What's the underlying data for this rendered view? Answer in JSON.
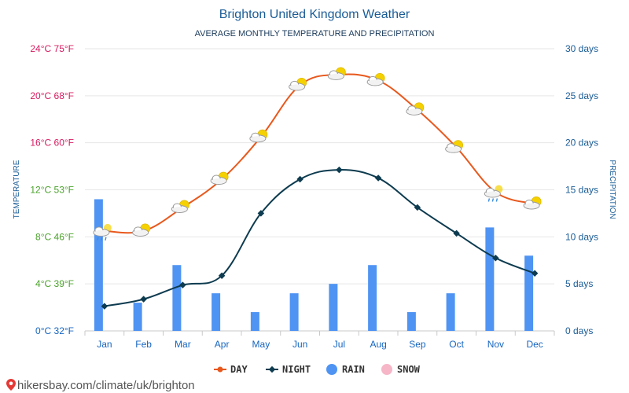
{
  "chart_data": {
    "type": "line",
    "title": "Brighton United Kingdom Weather",
    "subtitle": "AVERAGE MONTHLY TEMPERATURE AND PRECIPITATION",
    "ylabel_left": "TEMPERATURE",
    "ylabel_right": "PRECIPITATION",
    "categories": [
      "Jan",
      "Feb",
      "Mar",
      "Apr",
      "May",
      "Jun",
      "Jul",
      "Aug",
      "Sep",
      "Oct",
      "Nov",
      "Dec"
    ],
    "left_axis": {
      "ylim": [
        0,
        24
      ],
      "ticks": [
        {
          "value": 0,
          "label": "0°C 32°F",
          "color": "#1565c0"
        },
        {
          "value": 4,
          "label": "4°C 39°F",
          "color": "#4aa32a"
        },
        {
          "value": 8,
          "label": "8°C 46°F",
          "color": "#4aa32a"
        },
        {
          "value": 12,
          "label": "12°C 53°F",
          "color": "#4aa32a"
        },
        {
          "value": 16,
          "label": "16°C 60°F",
          "color": "#d81b60"
        },
        {
          "value": 20,
          "label": "20°C 68°F",
          "color": "#d81b60"
        },
        {
          "value": 24,
          "label": "24°C 75°F",
          "color": "#d81b60"
        }
      ]
    },
    "right_axis": {
      "ylim": [
        0,
        30
      ],
      "ticks": [
        {
          "value": 0,
          "label": "0 days"
        },
        {
          "value": 5,
          "label": "5 days"
        },
        {
          "value": 10,
          "label": "10 days"
        },
        {
          "value": 15,
          "label": "15 days"
        },
        {
          "value": 20,
          "label": "20 days"
        },
        {
          "value": 25,
          "label": "25 days"
        },
        {
          "value": 30,
          "label": "30 days"
        }
      ]
    },
    "series": [
      {
        "name": "DAY",
        "axis": "left",
        "kind": "line",
        "color": "#e8581c",
        "values": [
          8.5,
          8.5,
          10.5,
          12.9,
          16.5,
          20.9,
          21.8,
          21.3,
          18.8,
          15.6,
          11.8,
          10.8
        ]
      },
      {
        "name": "NIGHT",
        "axis": "left",
        "kind": "line",
        "color": "#0d3b4f",
        "values": [
          2.1,
          2.7,
          3.9,
          4.7,
          10.0,
          12.9,
          13.7,
          13.0,
          10.5,
          8.3,
          6.2,
          4.9
        ]
      },
      {
        "name": "RAIN",
        "axis": "right",
        "kind": "bar",
        "color": "#4f94f3",
        "values": [
          14,
          3,
          7,
          4,
          2,
          4,
          5,
          7,
          2,
          4,
          11,
          8
        ]
      },
      {
        "name": "SNOW",
        "axis": "right",
        "kind": "bar",
        "color": "#f7b6c8",
        "values": [
          0,
          0,
          0,
          0,
          0,
          0,
          0,
          0,
          0,
          0,
          0,
          0
        ]
      }
    ],
    "weather_icons": [
      "cloud-rain",
      "cloud-sun",
      "cloud-sun",
      "cloud-sun",
      "cloud-sun",
      "cloud-sun",
      "cloud-sun",
      "cloud-sun",
      "cloud-sun",
      "cloud-sun",
      "cloud-rain",
      "cloud-sun"
    ],
    "grid": true,
    "legend_position": "bottom"
  },
  "colors": {
    "title": "#1a5c96",
    "grid": "#e6e6e6",
    "axis_text": "#1565c0",
    "right_axis_text": "#1a5c96"
  },
  "footer": {
    "text": "hikersbay.com/climate/uk/brighton",
    "icon": "location-pin-icon"
  }
}
